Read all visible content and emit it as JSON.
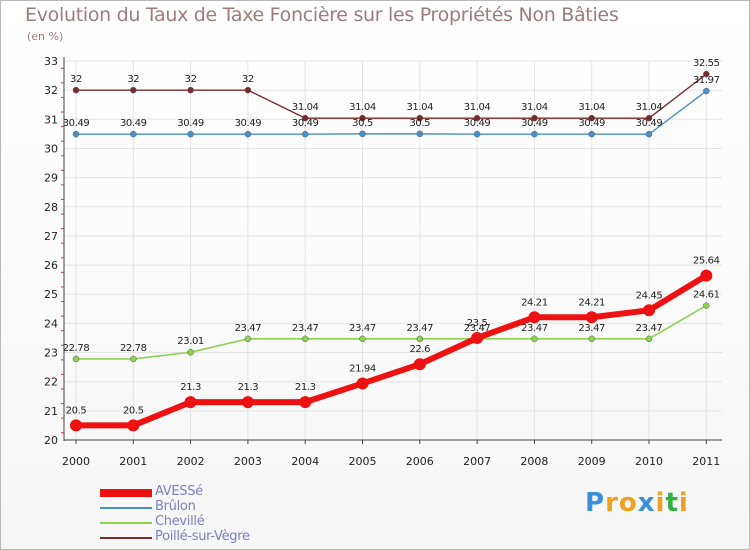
{
  "chart_data": {
    "type": "line",
    "title": "Evolution du Taux de Taxe Foncière sur les Propriétés Non Bâties",
    "ylabel": "(en %)",
    "ylim": [
      20,
      33
    ],
    "yticks": [
      "20",
      "21",
      "22",
      "23",
      "24",
      "25",
      "26",
      "27",
      "28",
      "29",
      "30",
      "31",
      "32",
      "33"
    ],
    "categories": [
      "2000",
      "2001",
      "2002",
      "2003",
      "2004",
      "2005",
      "2006",
      "2007",
      "2008",
      "2009",
      "2010",
      "2011"
    ],
    "series": [
      {
        "name": "Poillé-sur-Vègre",
        "color": "#7a2a2a",
        "values": [
          32,
          32,
          32,
          32,
          31.04,
          31.04,
          31.04,
          31.04,
          31.04,
          31.04,
          31.04,
          32.55
        ],
        "labels": [
          "32",
          "32",
          "32",
          "32",
          "31.04",
          "31.04",
          "31.04",
          "31.04",
          "31.04",
          "31.04",
          "31.04",
          "32.55"
        ]
      },
      {
        "name": "Brûlon",
        "color": "#4a90c8",
        "values": [
          30.49,
          30.49,
          30.49,
          30.49,
          30.49,
          30.5,
          30.5,
          30.49,
          30.49,
          30.49,
          30.49,
          31.97
        ],
        "labels": [
          "30.49",
          "30.49",
          "30.49",
          "30.49",
          "30.49",
          "30.5",
          "30.5",
          "30.49",
          "30.49",
          "30.49",
          "30.49",
          "31.97"
        ]
      },
      {
        "name": "Chevillé",
        "color": "#8fd050",
        "values": [
          22.78,
          22.78,
          23.01,
          23.47,
          23.47,
          23.47,
          23.47,
          23.47,
          23.47,
          23.47,
          23.47,
          24.61
        ],
        "labels": [
          "22.78",
          "22.78",
          "23.01",
          "23.47",
          "23.47",
          "23.47",
          "23.47",
          "23.47",
          "23.47",
          "23.47",
          "23.47",
          "24.61"
        ]
      },
      {
        "name": "AVESSé",
        "color": "#ee1111",
        "values": [
          20.5,
          20.5,
          21.3,
          21.3,
          21.3,
          21.94,
          22.6,
          23.5,
          24.21,
          24.21,
          24.45,
          25.64
        ],
        "labels": [
          "20.5",
          "20.5",
          "21.3",
          "21.3",
          "21.3",
          "21.94",
          "22.6",
          "23.5",
          "24.21",
          "24.21",
          "24.45",
          "25.64"
        ]
      }
    ],
    "legend_order": [
      "AVESSé",
      "Brûlon",
      "Chevillé",
      "Poillé-sur-Vègre"
    ],
    "legend_position": "bottom-left"
  },
  "logo": {
    "letters": [
      "P",
      "r",
      "o",
      "x",
      "i",
      "t",
      "i"
    ],
    "colors": [
      "#3a8fd8",
      "#f0a020",
      "#f0a020",
      "#3a8fd8",
      "#f0a020",
      "#30b040",
      "#f0a020"
    ]
  }
}
